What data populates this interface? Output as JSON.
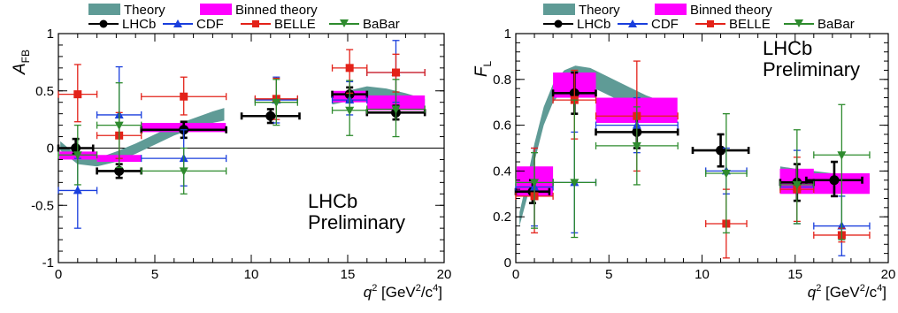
{
  "legend": {
    "theory": "Theory",
    "binned_theory": "Binned theory",
    "lhcb": "LHCb",
    "cdf": "CDF",
    "belle": "BELLE",
    "babar": "BaBar"
  },
  "colors": {
    "theory": "#5f9b96",
    "binned": "#ff00ff",
    "lhcb": "#000000",
    "cdf": "#1a3fdd",
    "belle": "#e32219",
    "babar": "#2e8b2e"
  },
  "chart_data": [
    {
      "type": "scatter",
      "ylabel": "A",
      "ylabel_sub": "FB",
      "xlabel": "q",
      "xlabel_sup": "2",
      "xlabel_units": " [GeV",
      "xlabel_units_sup": "2",
      "xlabel_units_tail": "/c",
      "xlabel_units_sup2": "4",
      "xlabel_close": "]",
      "annotation": [
        "LHCb",
        "Preliminary"
      ],
      "xlim": [
        0,
        20
      ],
      "ylim": [
        -1,
        1
      ],
      "xticks": [
        0,
        5,
        10,
        15,
        20
      ],
      "yticks": [
        -1,
        -0.5,
        0,
        0.5,
        1
      ],
      "xtick_labels": [
        "0",
        "5",
        "10",
        "15",
        "20"
      ],
      "ytick_labels": [
        "-1",
        "-0.5",
        "0",
        "0.5",
        "1"
      ],
      "zero_line": true,
      "theory_band": [
        [
          0.1,
          -0.02,
          0.06
        ],
        [
          1.0,
          -0.14,
          -0.07
        ],
        [
          2.0,
          -0.16,
          -0.09
        ],
        [
          3.0,
          -0.12,
          -0.03
        ],
        [
          4.0,
          -0.05,
          0.04
        ],
        [
          5.0,
          0.03,
          0.12
        ],
        [
          6.0,
          0.11,
          0.2
        ],
        [
          7.0,
          0.17,
          0.26
        ],
        [
          8.0,
          0.22,
          0.32
        ],
        [
          8.6,
          0.24,
          0.35
        ],
        null,
        [
          14.2,
          0.38,
          0.46
        ],
        [
          15.0,
          0.41,
          0.5
        ],
        [
          16.0,
          0.44,
          0.54
        ],
        [
          17.0,
          0.42,
          0.52
        ],
        [
          18.0,
          0.38,
          0.48
        ],
        [
          19.0,
          0.33,
          0.43
        ]
      ],
      "binned": [
        [
          0.05,
          2.0,
          -0.1,
          -0.03
        ],
        [
          2.0,
          4.3,
          -0.12,
          -0.06
        ],
        [
          4.3,
          8.68,
          0.14,
          0.22
        ],
        [
          14.18,
          16.0,
          0.4,
          0.5
        ],
        [
          16.0,
          19.0,
          0.33,
          0.46
        ]
      ],
      "series": [
        {
          "name": "LHCb",
          "marker": "circle",
          "points": [
            [
              0.9,
              0.0,
              0.9,
              0.05,
              0.08
            ],
            [
              3.15,
              -0.2,
              1.15,
              0.06,
              0.06
            ],
            [
              6.5,
              0.16,
              2.2,
              0.07,
              0.07
            ],
            [
              11.0,
              0.28,
              1.5,
              0.06,
              0.06
            ],
            [
              15.1,
              0.47,
              0.9,
              0.06,
              0.06
            ],
            [
              17.5,
              0.31,
              1.5,
              0.06,
              0.06
            ]
          ]
        },
        {
          "name": "CDF",
          "marker": "triangle-up",
          "points": [
            [
              1.0,
              -0.37,
              1.0,
              0.33,
              0.28
            ],
            [
              3.15,
              0.29,
              1.15,
              0.38,
              0.42
            ],
            [
              6.5,
              -0.09,
              2.2,
              0.24,
              0.25
            ],
            [
              11.3,
              0.42,
              1.1,
              0.2,
              0.2
            ],
            [
              15.1,
              0.42,
              0.9,
              0.13,
              0.16
            ],
            [
              17.5,
              0.66,
              1.5,
              0.26,
              0.28
            ]
          ]
        },
        {
          "name": "BELLE",
          "marker": "square",
          "points": [
            [
              1.0,
              0.47,
              1.0,
              0.24,
              0.26
            ],
            [
              3.15,
              0.11,
              1.15,
              0.2,
              0.2
            ],
            [
              6.5,
              0.45,
              2.2,
              0.16,
              0.17
            ],
            [
              11.3,
              0.43,
              1.1,
              0.18,
              0.18
            ],
            [
              15.1,
              0.7,
              0.9,
              0.22,
              0.16
            ],
            [
              17.5,
              0.66,
              1.5,
              0.17,
              0.16
            ]
          ]
        },
        {
          "name": "BaBar",
          "marker": "triangle-down",
          "points": [
            [
              1.0,
              -0.06,
              1.0,
              0.26,
              0.26
            ],
            [
              3.15,
              0.2,
              1.15,
              0.37,
              0.37
            ],
            [
              6.5,
              -0.2,
              2.2,
              0.2,
              0.2
            ],
            [
              11.3,
              0.4,
              1.1,
              0.2,
              0.2
            ],
            [
              15.1,
              0.33,
              0.9,
              0.22,
              0.26
            ],
            [
              17.5,
              0.34,
              1.5,
              0.24,
              0.26
            ]
          ]
        }
      ]
    },
    {
      "type": "scatter",
      "ylabel": "F",
      "ylabel_sub": "L",
      "xlabel": "q",
      "xlabel_sup": "2",
      "xlabel_units": " [GeV",
      "xlabel_units_sup": "2",
      "xlabel_units_tail": "/c",
      "xlabel_units_sup2": "4",
      "xlabel_close": "]",
      "annotation": [
        "LHCb",
        "Preliminary"
      ],
      "xlim": [
        0,
        20
      ],
      "ylim": [
        0,
        1
      ],
      "xticks": [
        0,
        5,
        10,
        15,
        20
      ],
      "yticks": [
        0,
        0.2,
        0.4,
        0.6,
        0.8,
        1
      ],
      "xtick_labels": [
        "0",
        "5",
        "10",
        "15",
        "20"
      ],
      "ytick_labels": [
        "0",
        "0.2",
        "0.4",
        "0.6",
        "0.8",
        "1"
      ],
      "zero_line": false,
      "theory_band": [
        [
          0.2,
          0.16,
          0.22
        ],
        [
          0.6,
          0.28,
          0.36
        ],
        [
          1.0,
          0.44,
          0.52
        ],
        [
          1.5,
          0.6,
          0.68
        ],
        [
          2.0,
          0.7,
          0.78
        ],
        [
          2.6,
          0.76,
          0.84
        ],
        [
          3.2,
          0.78,
          0.86
        ],
        [
          4.0,
          0.77,
          0.85
        ],
        [
          5.0,
          0.73,
          0.81
        ],
        [
          6.0,
          0.69,
          0.77
        ],
        [
          7.0,
          0.66,
          0.73
        ],
        [
          8.0,
          0.63,
          0.7
        ],
        [
          8.6,
          0.62,
          0.69
        ],
        null,
        [
          14.2,
          0.33,
          0.42
        ],
        [
          15.0,
          0.33,
          0.41
        ],
        [
          16.0,
          0.32,
          0.4
        ],
        [
          17.0,
          0.32,
          0.39
        ],
        [
          18.0,
          0.32,
          0.38
        ],
        [
          19.0,
          0.32,
          0.37
        ]
      ],
      "binned": [
        [
          0.05,
          2.0,
          0.29,
          0.42
        ],
        [
          2.0,
          4.3,
          0.72,
          0.83
        ],
        [
          4.3,
          8.68,
          0.61,
          0.72
        ],
        [
          14.18,
          16.0,
          0.3,
          0.41
        ],
        [
          16.0,
          19.0,
          0.3,
          0.39
        ]
      ],
      "series": [
        {
          "name": "LHCb",
          "marker": "circle",
          "points": [
            [
              0.9,
              0.31,
              0.9,
              0.05,
              0.05
            ],
            [
              3.15,
              0.74,
              1.15,
              0.09,
              0.09
            ],
            [
              6.5,
              0.57,
              2.2,
              0.07,
              0.07
            ],
            [
              11.0,
              0.49,
              1.5,
              0.07,
              0.07
            ],
            [
              15.1,
              0.35,
              0.9,
              0.08,
              0.08
            ],
            [
              17.1,
              0.36,
              1.5,
              0.07,
              0.08
            ]
          ]
        },
        {
          "name": "CDF",
          "marker": "triangle-up",
          "points": [
            [
              1.0,
              0.33,
              1.0,
              0.17,
              0.17
            ],
            [
              3.15,
              0.35,
              1.15,
              0.22,
              0.22
            ],
            [
              6.5,
              0.6,
              2.2,
              0.12,
              0.12
            ],
            [
              11.3,
              0.4,
              1.1,
              0.1,
              0.1
            ],
            [
              15.1,
              0.33,
              0.9,
              0.16,
              0.16
            ],
            [
              17.5,
              0.16,
              1.5,
              0.13,
              0.13
            ]
          ]
        },
        {
          "name": "BELLE",
          "marker": "square",
          "points": [
            [
              1.0,
              0.29,
              1.0,
              0.16,
              0.21
            ],
            [
              3.15,
              0.71,
              1.15,
              0.17,
              0.13
            ],
            [
              6.5,
              0.64,
              2.2,
              0.24,
              0.24
            ],
            [
              11.3,
              0.17,
              1.1,
              0.15,
              0.15
            ],
            [
              15.1,
              0.32,
              0.9,
              0.14,
              0.14
            ],
            [
              17.5,
              0.12,
              1.5,
              0.03,
              0.03
            ]
          ]
        },
        {
          "name": "BaBar",
          "marker": "triangle-down",
          "points": [
            [
              1.0,
              0.35,
              1.0,
              0.2,
              0.13
            ],
            [
              3.15,
              0.35,
              1.15,
              0.24,
              0.36
            ],
            [
              6.5,
              0.51,
              2.2,
              0.17,
              0.17
            ],
            [
              11.3,
              0.39,
              1.1,
              0.26,
              0.26
            ],
            [
              15.1,
              0.34,
              0.9,
              0.17,
              0.24
            ],
            [
              17.5,
              0.47,
              1.5,
              0.37,
              0.22
            ]
          ]
        }
      ]
    }
  ]
}
